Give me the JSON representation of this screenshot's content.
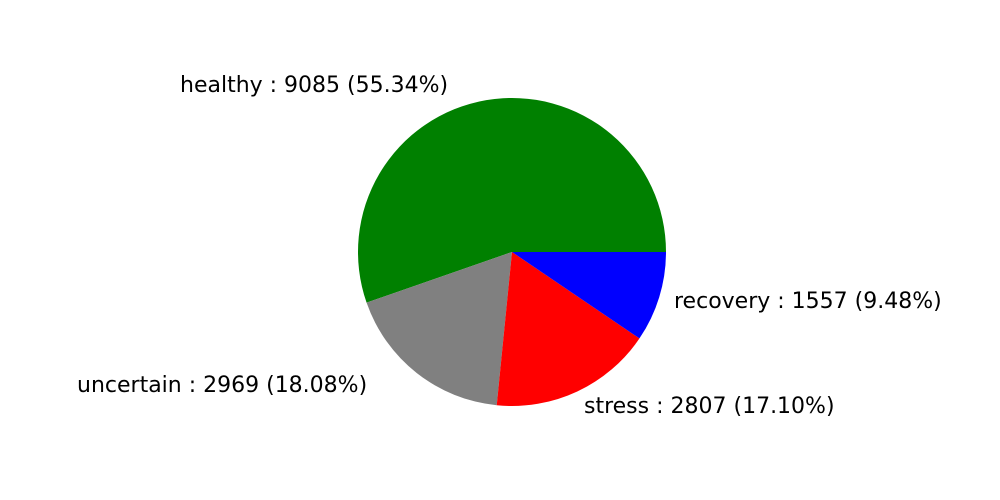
{
  "chart_data": {
    "type": "pie",
    "title": "",
    "start_angle_deg": 0,
    "direction": "counterclockwise",
    "slices": [
      {
        "label": "healthy",
        "value": 9085,
        "percent": "55.34%",
        "color": "#008000",
        "text": "healthy : 9085 (55.34%)"
      },
      {
        "label": "uncertain",
        "value": 2969,
        "percent": "18.08%",
        "color": "#808080",
        "text": "uncertain : 2969 (18.08%)"
      },
      {
        "label": "stress",
        "value": 2807,
        "percent": "17.10%",
        "color": "#ff0000",
        "text": "stress : 2807 (17.10%)"
      },
      {
        "label": "recovery",
        "value": 1557,
        "percent": "9.48%",
        "color": "#0000ff",
        "text": "recovery : 1557 (9.48%)"
      }
    ]
  }
}
